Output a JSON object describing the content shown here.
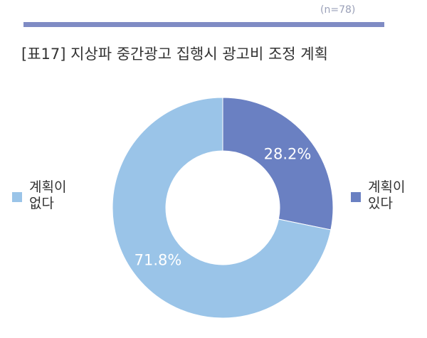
{
  "header": {
    "sample_size": "(n=78)",
    "title": "[표17] 지상파 중간광고 집행시 광고비 조정 계획"
  },
  "chart_data": {
    "type": "pie",
    "style": "donut",
    "title": "[표17] 지상파 중간광고 집행시 광고비 조정 계획",
    "slices": [
      {
        "label_lines": [
          "계획이",
          "있다"
        ],
        "value": 28.2,
        "value_label": "28.2%",
        "color": "#6a80c2",
        "text_color": "#ffffff"
      },
      {
        "label_lines": [
          "계획이",
          "없다"
        ],
        "value": 71.8,
        "value_label": "71.8%",
        "color": "#9ac4e8",
        "text_color": "#ffffff"
      }
    ],
    "legend": [
      "left",
      "right"
    ]
  }
}
